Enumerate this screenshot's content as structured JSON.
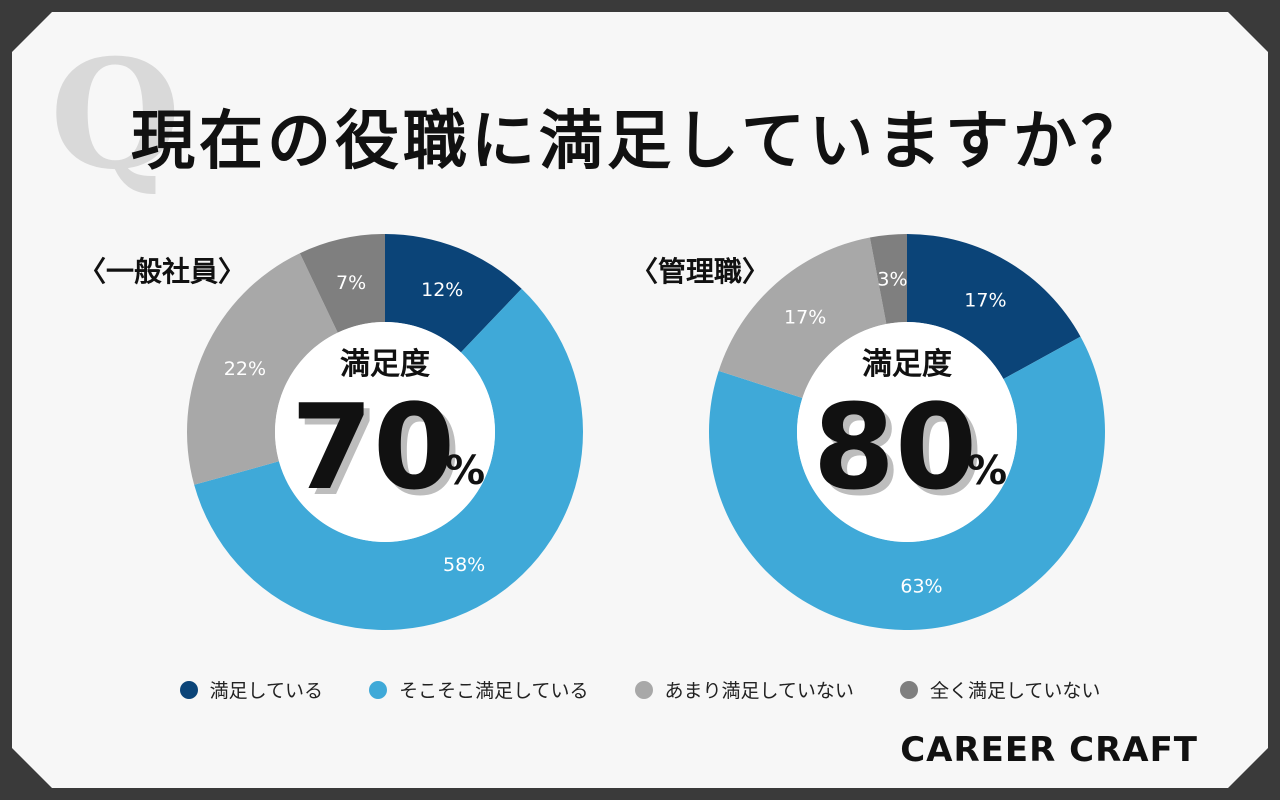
{
  "title": "現在の役職に満足していますか？",
  "q_mark": "Q",
  "brand": "CAREER CRAFT",
  "center_label": "満足度",
  "percent_sign": "%",
  "chart_data": [
    {
      "type": "pie",
      "panel_label": "〈一般社員〉",
      "satisfaction": "70",
      "categories": [
        "満足している",
        "そこそこ満足している",
        "あまり満足していない",
        "全く満足していない"
      ],
      "values": [
        12,
        58,
        22,
        7
      ],
      "labels": [
        "12%",
        "58%",
        "22%",
        "7%"
      ],
      "colors": [
        "#0b4478",
        "#3fa9d8",
        "#a8a8a8",
        "#7f7f7f"
      ]
    },
    {
      "type": "pie",
      "panel_label": "〈管理職〉",
      "satisfaction": "80",
      "categories": [
        "満足している",
        "そこそこ満足している",
        "あまり満足していない",
        "全く満足していない"
      ],
      "values": [
        17,
        63,
        17,
        3
      ],
      "labels": [
        "17%",
        "63%",
        "17%",
        "3%"
      ],
      "colors": [
        "#0b4478",
        "#3fa9d8",
        "#a8a8a8",
        "#7f7f7f"
      ]
    }
  ],
  "legend": [
    {
      "label": "満足している",
      "color": "#0b4478"
    },
    {
      "label": "そこそこ満足している",
      "color": "#3fa9d8"
    },
    {
      "label": "あまり満足していない",
      "color": "#a8a8a8"
    },
    {
      "label": "全く満足していない",
      "color": "#7f7f7f"
    }
  ]
}
